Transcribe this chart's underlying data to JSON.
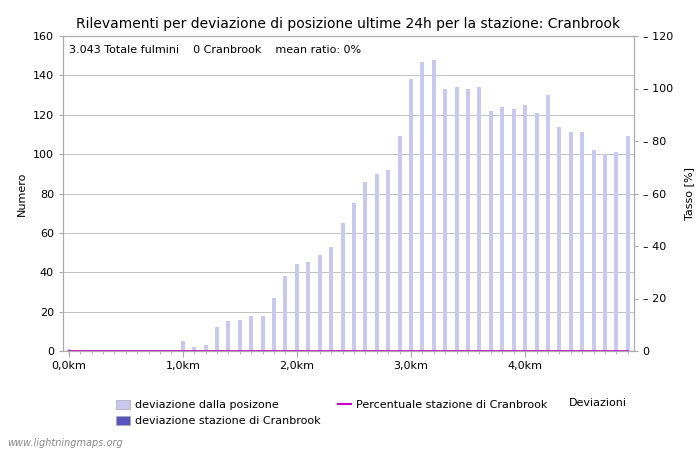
{
  "title": "Rilevamenti per deviazione di posizione ultime 24h per la stazione: Cranbrook",
  "subtitle": "3.043 Totale fulmini    0 Cranbrook    mean ratio: 0%",
  "ylabel_left": "Numero",
  "ylabel_right": "Tasso [%]",
  "xlabel": "Deviazioni",
  "watermark": "www.lightningmaps.org",
  "ylim_left": [
    0,
    160
  ],
  "ylim_right": [
    0,
    120
  ],
  "yticks_left": [
    0,
    20,
    40,
    60,
    80,
    100,
    120,
    140,
    160
  ],
  "yticks_right": [
    0,
    20,
    40,
    60,
    80,
    100,
    120
  ],
  "xtick_labels": [
    "0,0km",
    "1,0km",
    "2,0km",
    "3,0km",
    "4,0km"
  ],
  "xtick_positions": [
    0,
    10,
    20,
    30,
    40
  ],
  "bar_positions": [
    0,
    1,
    2,
    3,
    4,
    5,
    6,
    7,
    8,
    9,
    10,
    11,
    12,
    13,
    14,
    15,
    16,
    17,
    18,
    19,
    20,
    21,
    22,
    23,
    24,
    25,
    26,
    27,
    28,
    29,
    30,
    31,
    32,
    33,
    34,
    35,
    36,
    37,
    38,
    39,
    40,
    41,
    42,
    43,
    44,
    45,
    46,
    47,
    48,
    49
  ],
  "bar_values": [
    1,
    0,
    0,
    0,
    0,
    0,
    0,
    0,
    0,
    0,
    5,
    2,
    3,
    12,
    15,
    16,
    18,
    18,
    27,
    38,
    44,
    45,
    49,
    53,
    65,
    75,
    86,
    90,
    92,
    109,
    138,
    147,
    148,
    133,
    134,
    133,
    134,
    122,
    124,
    123,
    125,
    121,
    130,
    114,
    111,
    111,
    102,
    100,
    101,
    109
  ],
  "bar_color_light": "#c8c8f0",
  "bar_color_dark": "#5555bb",
  "line_color": "#cc00cc",
  "line_values": [
    0,
    0,
    0,
    0,
    0,
    0,
    0,
    0,
    0,
    0,
    0,
    0,
    0,
    0,
    0,
    0,
    0,
    0,
    0,
    0,
    0,
    0,
    0,
    0,
    0,
    0,
    0,
    0,
    0,
    0,
    0,
    0,
    0,
    0,
    0,
    0,
    0,
    0,
    0,
    0,
    0,
    0,
    0,
    0,
    0,
    0,
    0,
    0,
    0,
    0
  ],
  "cranbrook_values": [
    0,
    0,
    0,
    0,
    0,
    0,
    0,
    0,
    0,
    0,
    0,
    0,
    0,
    0,
    0,
    0,
    0,
    0,
    0,
    0,
    0,
    0,
    0,
    0,
    0,
    0,
    0,
    0,
    0,
    0,
    0,
    0,
    0,
    0,
    0,
    0,
    0,
    0,
    0,
    0,
    0,
    0,
    0,
    0,
    0,
    0,
    0,
    0,
    0,
    0
  ],
  "bg_color": "#ffffff",
  "grid_color": "#aaaaaa",
  "title_fontsize": 10,
  "subtitle_fontsize": 8,
  "axis_fontsize": 8,
  "tick_fontsize": 8,
  "legend_fontsize": 8
}
